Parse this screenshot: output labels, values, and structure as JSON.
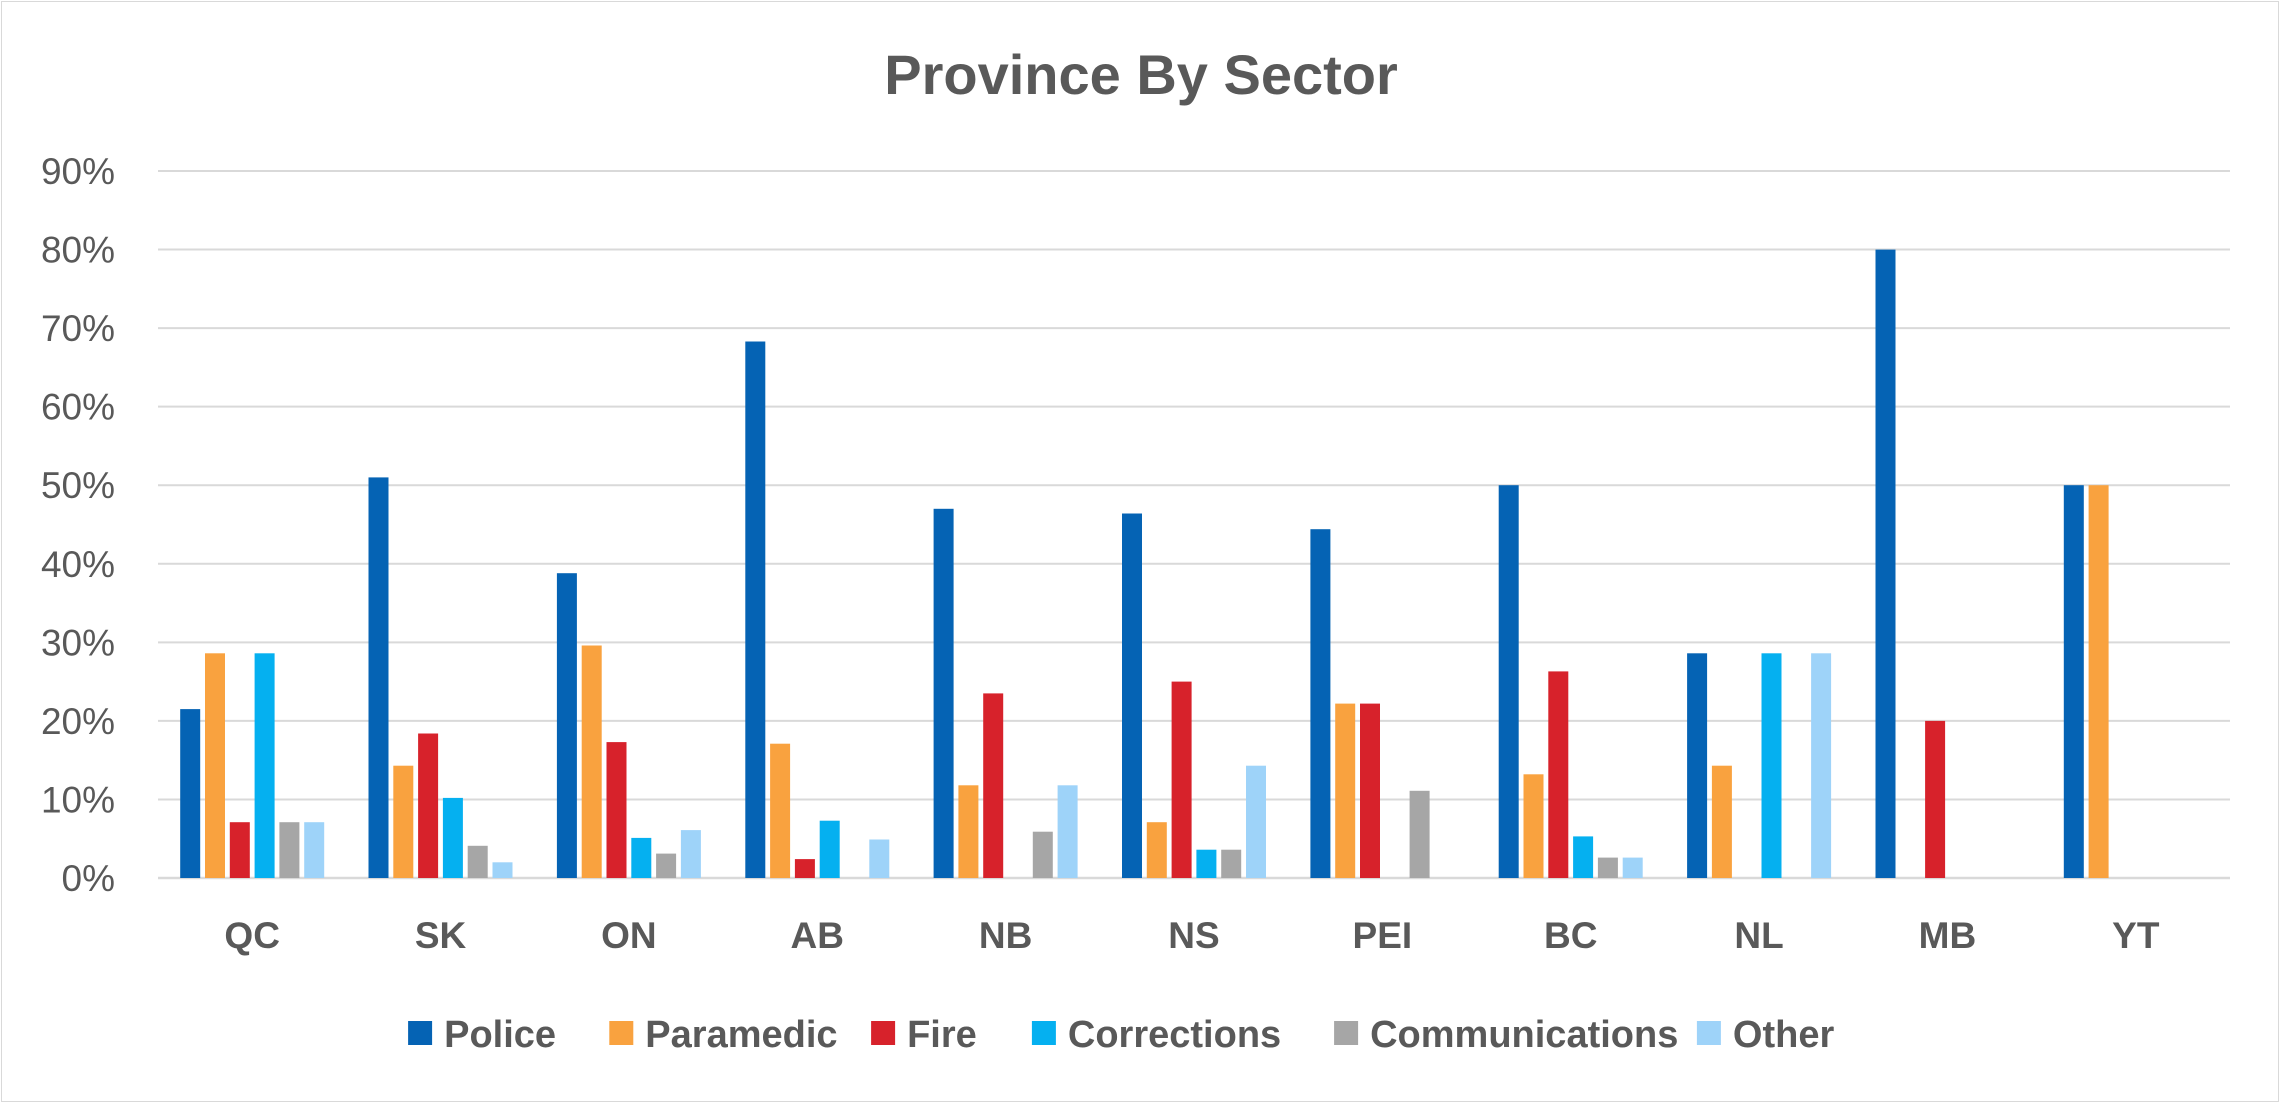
{
  "chart_data": {
    "type": "bar",
    "title": "Province By Sector",
    "xlabel": "",
    "ylabel": "",
    "ylim": [
      0,
      90
    ],
    "y_tick_step": 10,
    "y_tick_format": "percent",
    "grid": true,
    "legend_position": "bottom",
    "categories": [
      "QC",
      "SK",
      "ON",
      "AB",
      "NB",
      "NS",
      "PEI",
      "BC",
      "NL",
      "MB",
      "YT"
    ],
    "series": [
      {
        "name": "Police",
        "color": "#0563b4",
        "values": [
          21.5,
          51,
          38.8,
          68.3,
          47,
          46.4,
          44.4,
          50,
          28.6,
          80,
          50
        ]
      },
      {
        "name": "Paramedic",
        "color": "#f9a23f",
        "values": [
          28.6,
          14.3,
          29.6,
          17.1,
          11.8,
          7.1,
          22.2,
          13.2,
          14.3,
          0,
          50
        ]
      },
      {
        "name": "Fire",
        "color": "#d7222b",
        "values": [
          7.1,
          18.4,
          17.3,
          2.4,
          23.5,
          25,
          22.2,
          26.3,
          0,
          20,
          0
        ]
      },
      {
        "name": "Corrections",
        "color": "#05b0f0",
        "values": [
          28.6,
          10.2,
          5.1,
          7.3,
          0,
          3.6,
          0,
          5.3,
          28.6,
          0,
          0
        ]
      },
      {
        "name": "Communications",
        "color": "#a6a6a6",
        "values": [
          7.1,
          4.1,
          3.1,
          0,
          5.9,
          3.6,
          11.1,
          2.6,
          0,
          0,
          0
        ]
      },
      {
        "name": "Other",
        "color": "#9ed3f9",
        "values": [
          7.1,
          2,
          6.1,
          4.9,
          11.8,
          14.3,
          0,
          2.6,
          28.6,
          0,
          0
        ]
      }
    ]
  }
}
